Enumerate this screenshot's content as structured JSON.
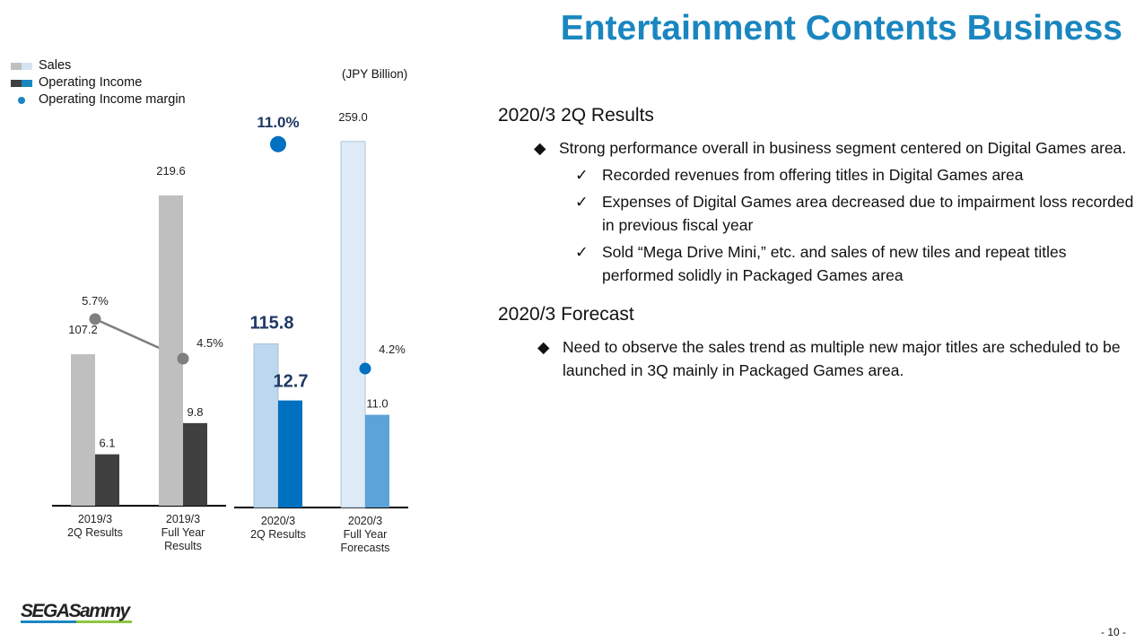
{
  "title": "Entertainment Contents Business",
  "page_number": "- 10 -",
  "logo_text": "SEGASammy",
  "chart_data": {
    "type": "bar",
    "unit": "(JPY Billion)",
    "legend": [
      "Sales",
      "Operating Income",
      "Operating Income margin"
    ],
    "categories": [
      [
        "2019/3",
        "2Q Results"
      ],
      [
        "2019/3",
        "Full Year",
        "Results"
      ],
      [
        "2020/3",
        "2Q Results"
      ],
      [
        "2020/3",
        "Full Year",
        "Forecasts"
      ]
    ],
    "series": [
      {
        "name": "Sales",
        "values": [
          107.2,
          219.6,
          115.8,
          259.0
        ],
        "labels": [
          "107.2",
          "219.6",
          "115.8",
          "259.0"
        ]
      },
      {
        "name": "Operating Income",
        "values": [
          6.1,
          9.8,
          12.7,
          11.0
        ],
        "labels": [
          "6.1",
          "9.8",
          "12.7",
          "11.0"
        ]
      },
      {
        "name": "Operating Income margin",
        "values": [
          5.7,
          4.5,
          11.0,
          4.2
        ],
        "labels": [
          "5.7%",
          "4.5%",
          "11.0%",
          "4.2%"
        ]
      }
    ],
    "colors": {
      "sales": [
        "#bfbfbf",
        "#bfbfbf",
        "#bdd7ee",
        "#deebf7"
      ],
      "income": [
        "#404040",
        "#404040",
        "#0070c0",
        "#5ba3d9"
      ],
      "margin": [
        "#7f7f7f",
        "#7f7f7f",
        "#0070c0",
        "#0070c0"
      ]
    }
  },
  "content": {
    "section1": {
      "heading": "2020/3 2Q Results",
      "bullet": "Strong performance overall in business segment centered on Digital Games area.",
      "checks": [
        "Recorded revenues from offering titles in Digital Games area",
        "Expenses of Digital Games area decreased due to impairment loss recorded in previous fiscal year",
        "Sold “Mega Drive Mini,” etc. and sales of new tiles and repeat titles performed solidly in Packaged Games area"
      ]
    },
    "section2": {
      "heading": "2020/3 Forecast",
      "bullet": "Need to observe the sales trend as multiple new major titles are scheduled to be launched in 3Q mainly in Packaged Games area."
    }
  }
}
